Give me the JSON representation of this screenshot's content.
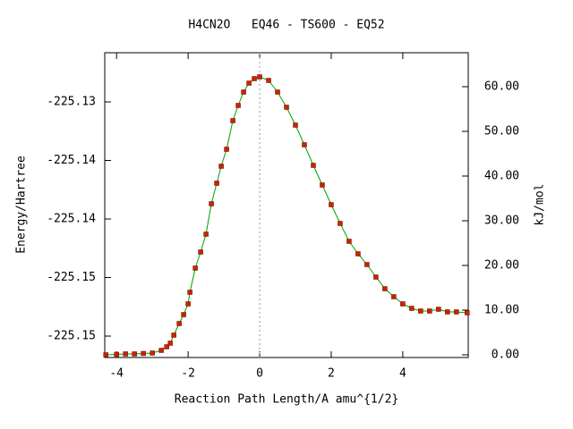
{
  "chart_data": {
    "type": "line",
    "title": "H4CN2O   EQ46 - TS600 - EQ52",
    "xlabel": "Reaction Path Length/A amu^{1/2}",
    "ylabel": "Energy/Hartree",
    "y2label": "kJ/mol",
    "xlim": [
      -4.33,
      5.83
    ],
    "xticks": [
      -4,
      -2,
      0,
      2,
      4
    ],
    "ylim": [
      -225.15183,
      -225.1258
    ],
    "yticks": [
      -225.13,
      {
        "value": -225.135,
        "label": "-225.14"
      },
      -225.14,
      {
        "value": -225.145,
        "label": "-225.15"
      },
      -225.15
    ],
    "y2lim": [
      -0.6,
      67.6
    ],
    "y2ticks": [
      {
        "value": 0,
        "label": "0.00"
      },
      {
        "value": 10,
        "label": "10.00"
      },
      {
        "value": 20,
        "label": "20.00"
      },
      {
        "value": 30,
        "label": "30.00"
      },
      {
        "value": 40,
        "label": "40.00"
      },
      {
        "value": 50,
        "label": "50.00"
      },
      {
        "value": 60,
        "label": "60.00"
      }
    ],
    "line_color": "#00a000",
    "marker_color": "#cc2200",
    "series": [
      {
        "axis": "y2",
        "x": [
          -4.3,
          -4.0,
          -3.75,
          -3.5,
          -3.25,
          -3.0,
          -2.75,
          -2.6,
          -2.5,
          -2.4,
          -2.25,
          -2.125,
          -2.0,
          -1.95,
          -1.8,
          -1.65,
          -1.5,
          -1.35,
          -1.2,
          -1.075,
          -0.925,
          -0.75,
          -0.6,
          -0.45,
          -0.3,
          -0.15,
          0,
          0.25,
          0.5,
          0.75,
          1.0,
          1.25,
          1.5,
          1.75,
          2.0,
          2.25,
          2.5,
          2.75,
          3.0,
          3.25,
          3.5,
          3.75,
          4.0,
          4.25,
          4.5,
          4.75,
          5.0,
          5.25,
          5.5,
          5.8
        ],
        "values": [
          0,
          0.1,
          0.2,
          0.2,
          0.3,
          0.4,
          1.0,
          1.8,
          2.6,
          4.4,
          7,
          9,
          11.4,
          14,
          19.4,
          23,
          27,
          33.8,
          38.4,
          42.2,
          46,
          52.4,
          55.8,
          58.8,
          60.8,
          61.8,
          62.2,
          61.4,
          58.8,
          55.4,
          51.4,
          47,
          42.4,
          38,
          33.6,
          29.4,
          25.4,
          22.6,
          20.2,
          17.4,
          14.8,
          13,
          11.4,
          10.4,
          9.8,
          9.8,
          10.2,
          9.6,
          9.6,
          9.4
        ]
      }
    ]
  }
}
